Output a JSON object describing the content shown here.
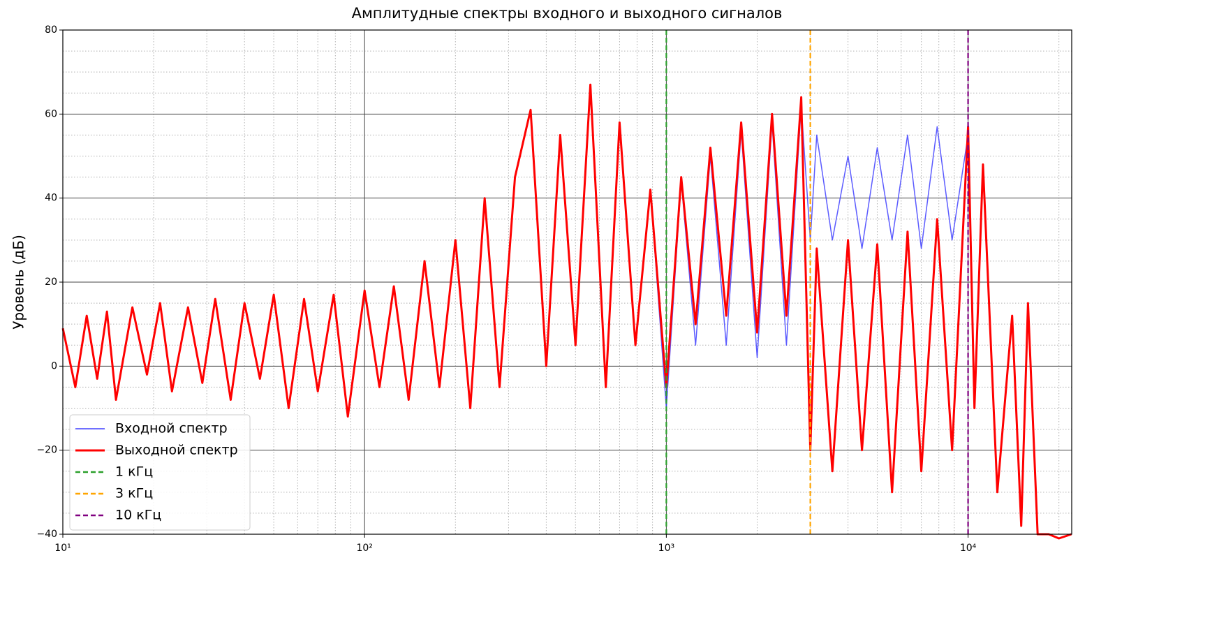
{
  "chart_data": {
    "type": "line",
    "title": "Амплитудные спектры входного и выходного сигналов",
    "y_label": "Уровень (дБ)",
    "log_x": true,
    "x": [
      10,
      11,
      12,
      13,
      14,
      15,
      17,
      19,
      21,
      23,
      26,
      29,
      32,
      36,
      40,
      45,
      50,
      56,
      63,
      70,
      79,
      88,
      100,
      112,
      125,
      140,
      158,
      177,
      200,
      224,
      250,
      280,
      315,
      355,
      400,
      445,
      500,
      560,
      630,
      700,
      790,
      885,
      1000,
      1120,
      1250,
      1400,
      1580,
      1770,
      2000,
      2240,
      2500,
      2800,
      3000,
      3150,
      3550,
      4000,
      4450,
      5000,
      5600,
      6300,
      7000,
      7900,
      8850,
      10000,
      10500,
      11200,
      12500,
      14000,
      15000,
      15800,
      17000,
      18500,
      20000,
      22000
    ],
    "series": [
      {
        "name": "Входной спектр",
        "color": "#4040ff",
        "width": 1.5,
        "values": [
          9,
          -5,
          12,
          -3,
          13,
          -8,
          14,
          -2,
          15,
          -6,
          14,
          -4,
          16,
          -8,
          15,
          -3,
          17,
          -10,
          16,
          -6,
          17,
          -12,
          18,
          -5,
          19,
          -8,
          25,
          -5,
          30,
          -10,
          40,
          -5,
          45,
          61,
          0,
          55,
          5,
          67,
          -5,
          58,
          5,
          42,
          -10,
          44,
          5,
          50,
          5,
          56,
          2,
          58,
          5,
          62,
          30,
          55,
          30,
          50,
          28,
          52,
          30,
          55,
          28,
          57,
          30,
          55,
          -10,
          48,
          -30,
          12,
          -38,
          15,
          -40,
          -40,
          -41,
          -40
        ]
      },
      {
        "name": "Выходной спектр",
        "color": "#ff0000",
        "width": 3,
        "values": [
          9,
          -5,
          12,
          -3,
          13,
          -8,
          14,
          -2,
          15,
          -6,
          14,
          -4,
          16,
          -8,
          15,
          -3,
          17,
          -10,
          16,
          -6,
          17,
          -12,
          18,
          -5,
          19,
          -8,
          25,
          -5,
          30,
          -10,
          40,
          -5,
          45,
          61,
          0,
          55,
          5,
          67,
          -5,
          58,
          5,
          42,
          -5,
          45,
          10,
          52,
          12,
          58,
          8,
          60,
          12,
          64,
          -20,
          28,
          -25,
          30,
          -20,
          29,
          -30,
          32,
          -25,
          35,
          -20,
          57,
          -10,
          48,
          -30,
          12,
          -38,
          15,
          -40,
          -40,
          -41,
          -40
        ]
      }
    ],
    "vlines": [
      {
        "x": 1000,
        "color": "#2ca02c",
        "label": "1 кГц"
      },
      {
        "x": 3000,
        "color": "#ffa500",
        "label": "3 кГц"
      },
      {
        "x": 10000,
        "color": "#800080",
        "label": "10 кГц"
      }
    ],
    "xlim": [
      10,
      22050
    ],
    "ylim": [
      -40,
      80
    ],
    "xticks": [
      {
        "value": 10,
        "label": "10¹"
      },
      {
        "value": 100,
        "label": "10²"
      },
      {
        "value": 1000,
        "label": "10³"
      },
      {
        "value": 10000,
        "label": "10⁴"
      }
    ],
    "yticks": [
      {
        "value": -40,
        "label": "−40"
      },
      {
        "value": -20,
        "label": "−20"
      },
      0,
      20,
      40,
      60,
      80
    ],
    "xminorticks": [
      20,
      30,
      40,
      50,
      60,
      70,
      80,
      90,
      200,
      300,
      400,
      500,
      600,
      700,
      800,
      900,
      2000,
      3000,
      4000,
      5000,
      6000,
      7000,
      8000,
      9000,
      20000
    ],
    "yminorticks": [
      -35,
      -30,
      -25,
      -15,
      -10,
      -5,
      5,
      10,
      15,
      25,
      30,
      35,
      45,
      50,
      55,
      65,
      70,
      75
    ],
    "grid": true,
    "legend": "lower left"
  }
}
